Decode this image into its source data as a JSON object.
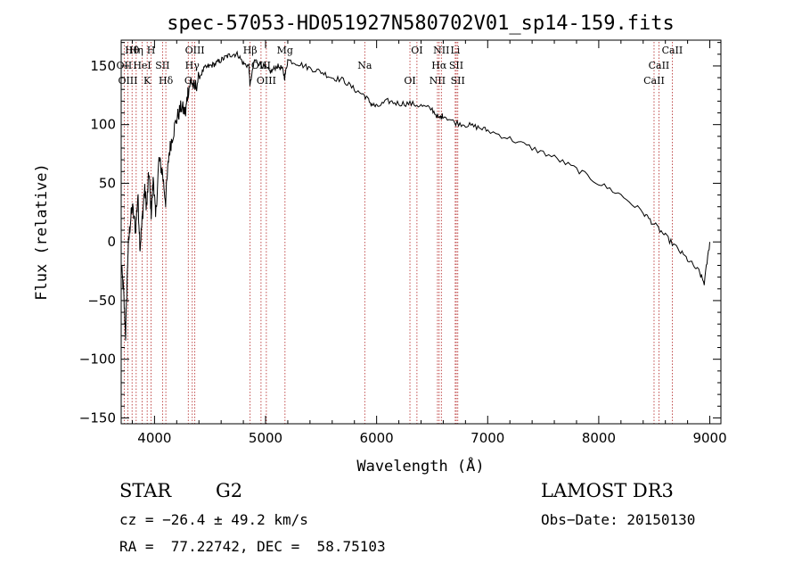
{
  "chart_data": {
    "type": "line",
    "title": "spec-57053-HD051927N580702V01_sp14-159.fits",
    "xlabel": "Wavelength (Å)",
    "ylabel": "Flux (relative)",
    "xlim": [
      3700,
      9100
    ],
    "ylim": [
      -155,
      172
    ],
    "xticks": [
      4000,
      5000,
      6000,
      7000,
      8000,
      9000
    ],
    "xtick_labels": [
      "4000",
      "5000",
      "6000",
      "7000",
      "8000",
      "9000"
    ],
    "yticks": [
      -150,
      -100,
      -50,
      0,
      50,
      100,
      150
    ],
    "ytick_labels": [
      "−150",
      "−100",
      "−50",
      "0",
      "50",
      "100",
      "150"
    ],
    "grid": false,
    "series": [
      {
        "name": "flux",
        "x": [
          3700,
          3720,
          3740,
          3760,
          3780,
          3800,
          3830,
          3850,
          3870,
          3890,
          3910,
          3930,
          3950,
          3970,
          3990,
          4010,
          4040,
          4070,
          4100,
          4130,
          4160,
          4200,
          4240,
          4280,
          4300,
          4330,
          4360,
          4400,
          4450,
          4500,
          4550,
          4600,
          4650,
          4700,
          4750,
          4800,
          4850,
          4860,
          4900,
          4950,
          5000,
          5050,
          5100,
          5150,
          5172,
          5200,
          5300,
          5400,
          5500,
          5600,
          5700,
          5800,
          5890,
          5950,
          6000,
          6100,
          6200,
          6300,
          6400,
          6500,
          6563,
          6600,
          6700,
          6800,
          6900,
          7000,
          7200,
          7400,
          7600,
          7800,
          8000,
          8200,
          8400,
          8500,
          8600,
          8700,
          8800,
          8900,
          8950,
          9000
        ],
        "values": [
          -20,
          -40,
          -80,
          -10,
          15,
          30,
          10,
          40,
          -5,
          20,
          45,
          30,
          60,
          25,
          55,
          20,
          70,
          60,
          35,
          75,
          90,
          105,
          115,
          110,
          128,
          138,
          130,
          140,
          148,
          150,
          152,
          155,
          158,
          160,
          160,
          152,
          150,
          133,
          155,
          152,
          148,
          145,
          150,
          148,
          140,
          155,
          152,
          148,
          145,
          140,
          138,
          130,
          125,
          118,
          115,
          120,
          118,
          118,
          116,
          113,
          105,
          108,
          102,
          100,
          98,
          95,
          88,
          80,
          72,
          62,
          50,
          40,
          25,
          15,
          5,
          -5,
          -15,
          -25,
          -35,
          0
        ]
      }
    ],
    "annotations": [
      {
        "label": "Hθ",
        "wavelength": 3798
      },
      {
        "label": "OII",
        "wavelength": 3727
      },
      {
        "label": "OIII",
        "wavelength": 3760
      },
      {
        "label": "Hη",
        "wavelength": 3835
      },
      {
        "label": "HeI",
        "wavelength": 3889
      },
      {
        "label": "K",
        "wavelength": 3934
      },
      {
        "label": "H",
        "wavelength": 3969
      },
      {
        "label": "SII",
        "wavelength": 4072
      },
      {
        "label": "Hδ",
        "wavelength": 4102
      },
      {
        "label": "OIII",
        "wavelength": 4363
      },
      {
        "label": "Hγ",
        "wavelength": 4340
      },
      {
        "label": "G",
        "wavelength": 4304
      },
      {
        "label": "Hβ",
        "wavelength": 4861
      },
      {
        "label": "OIII",
        "wavelength": 4959
      },
      {
        "label": "OIII",
        "wavelength": 5007
      },
      {
        "label": "Mg",
        "wavelength": 5175
      },
      {
        "label": "Na",
        "wavelength": 5893
      },
      {
        "label": "OI",
        "wavelength": 6300
      },
      {
        "label": "OI",
        "wavelength": 6363
      },
      {
        "label": "Hα",
        "wavelength": 6563
      },
      {
        "label": "NII",
        "wavelength": 6548
      },
      {
        "label": "NII",
        "wavelength": 6583
      },
      {
        "label": "SII",
        "wavelength": 6717
      },
      {
        "label": "SII",
        "wavelength": 6731
      },
      {
        "label": "Li",
        "wavelength": 6708
      },
      {
        "label": "CaII",
        "wavelength": 8542
      },
      {
        "label": "CaII",
        "wavelength": 8498
      },
      {
        "label": "CaII",
        "wavelength": 8662
      }
    ]
  },
  "info": {
    "object_class": "STAR",
    "subclass": "G2",
    "survey": "LAMOST DR3",
    "cz": "cz = −26.4 ± 49.2 km/s",
    "obs_date": "Obs−Date: 20150130",
    "coords": "RA =  77.22742, DEC =  58.75103"
  },
  "colors": {
    "spectrum": "#000000",
    "line_markers": "#b22222",
    "axes": "#000000"
  }
}
